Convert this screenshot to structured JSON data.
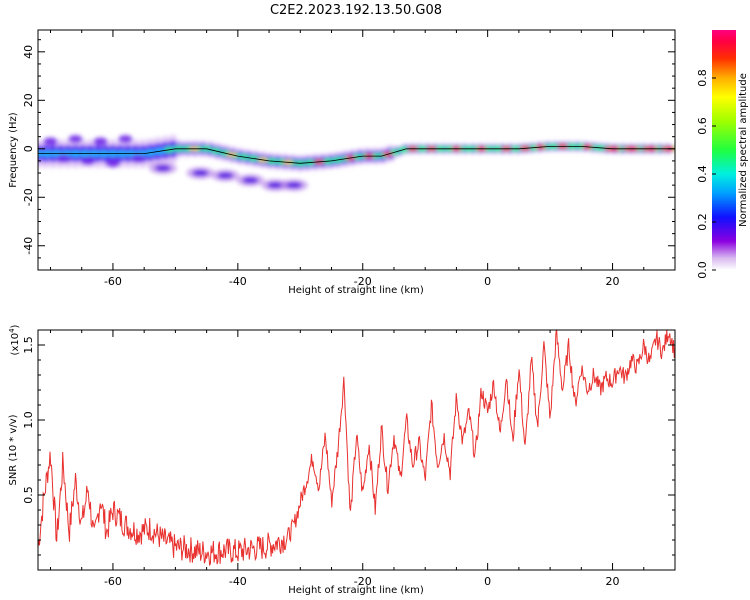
{
  "title": "C2E2.2023.192.13.50.G08",
  "chart_data": [
    {
      "type": "heatmap",
      "xlabel": "Height of straight line (km)",
      "ylabel": "Frequency (Hz)",
      "xlim": [
        -72,
        30
      ],
      "ylim": [
        -50,
        49
      ],
      "xticks": [
        -60,
        -40,
        -20,
        0,
        20
      ],
      "yticks": [
        -40,
        -20,
        0,
        20,
        40
      ],
      "ridge_line": [
        {
          "x": -72,
          "y": -2
        },
        {
          "x": -66,
          "y": -2
        },
        {
          "x": -60,
          "y": -2
        },
        {
          "x": -55,
          "y": -2
        },
        {
          "x": -50,
          "y": 0
        },
        {
          "x": -45,
          "y": 0
        },
        {
          "x": -40,
          "y": -3
        },
        {
          "x": -35,
          "y": -5
        },
        {
          "x": -30,
          "y": -6
        },
        {
          "x": -25,
          "y": -5
        },
        {
          "x": -20,
          "y": -3
        },
        {
          "x": -17,
          "y": -3
        },
        {
          "x": -13,
          "y": 0
        },
        {
          "x": 0,
          "y": 0
        },
        {
          "x": 5,
          "y": 0
        },
        {
          "x": 10,
          "y": 1
        },
        {
          "x": 15,
          "y": 1
        },
        {
          "x": 20,
          "y": 0
        },
        {
          "x": 30,
          "y": 0
        }
      ],
      "secondary_band": [
        {
          "x": -52,
          "y": -8
        },
        {
          "x": -46,
          "y": -10
        },
        {
          "x": -42,
          "y": -11
        },
        {
          "x": -38,
          "y": -13
        },
        {
          "x": -34,
          "y": -15
        },
        {
          "x": -31,
          "y": -15
        }
      ],
      "colorbar": {
        "label": "Normalized spectral amplitude",
        "range": [
          0,
          1
        ],
        "ticks": [
          "0.0",
          "0.2",
          "0.4",
          "0.6",
          "0.8"
        ]
      }
    },
    {
      "type": "line",
      "xlabel": "Height of straight line (km)",
      "ylabel": "SNR (10 * v/v)",
      "multiplier": "(x10",
      "multiplier_exp": "4",
      "multiplier_close": ")",
      "xlim": [
        -72,
        30
      ],
      "ylim": [
        0,
        1.6
      ],
      "xticks": [
        -60,
        -40,
        -20,
        0,
        20
      ],
      "yticks": [
        "0.5",
        "1.0",
        "1.5"
      ],
      "color": "#e8312e",
      "series": [
        {
          "x": [
            -72,
            -71,
            -70,
            -69,
            -68,
            -67,
            -66,
            -65,
            -64,
            -63,
            -62,
            -61,
            -60,
            -58,
            -56,
            -54,
            -52,
            -50,
            -48,
            -46,
            -44,
            -42,
            -40,
            -38,
            -36,
            -34,
            -32,
            -31,
            -30,
            -29,
            -28,
            -27,
            -26,
            -25,
            -24,
            -23,
            -22,
            -21,
            -20,
            -19,
            -18,
            -17,
            -16,
            -15,
            -14,
            -13,
            -12,
            -11,
            -10,
            -9,
            -8,
            -7,
            -6,
            -5,
            -4,
            -3,
            -2,
            -1,
            0,
            1,
            2,
            3,
            4,
            5,
            6,
            7,
            8,
            9,
            10,
            11,
            12,
            13,
            14,
            15,
            16,
            17,
            18,
            19,
            20,
            21,
            22,
            23,
            24,
            25,
            26,
            27,
            28,
            29,
            30
          ],
          "y": [
            0.15,
            0.5,
            0.78,
            0.2,
            0.72,
            0.25,
            0.6,
            0.3,
            0.55,
            0.2,
            0.48,
            0.25,
            0.4,
            0.3,
            0.25,
            0.28,
            0.2,
            0.15,
            0.14,
            0.12,
            0.12,
            0.13,
            0.12,
            0.14,
            0.15,
            0.18,
            0.22,
            0.3,
            0.45,
            0.6,
            0.75,
            0.55,
            0.9,
            0.45,
            0.8,
            1.28,
            0.35,
            0.9,
            0.5,
            0.85,
            0.4,
            0.95,
            0.55,
            0.9,
            0.6,
            1.0,
            0.7,
            0.85,
            0.6,
            1.1,
            0.7,
            0.9,
            0.65,
            1.15,
            0.85,
            1.05,
            0.75,
            1.2,
            1.05,
            1.25,
            0.9,
            1.3,
            0.85,
            1.35,
            0.8,
            1.4,
            0.95,
            1.5,
            1.0,
            1.58,
            1.2,
            1.5,
            1.1,
            1.35,
            1.2,
            1.3,
            1.2,
            1.28,
            1.25,
            1.35,
            1.28,
            1.4,
            1.35,
            1.5,
            1.38,
            1.55,
            1.45,
            1.6,
            1.45
          ]
        }
      ]
    }
  ]
}
